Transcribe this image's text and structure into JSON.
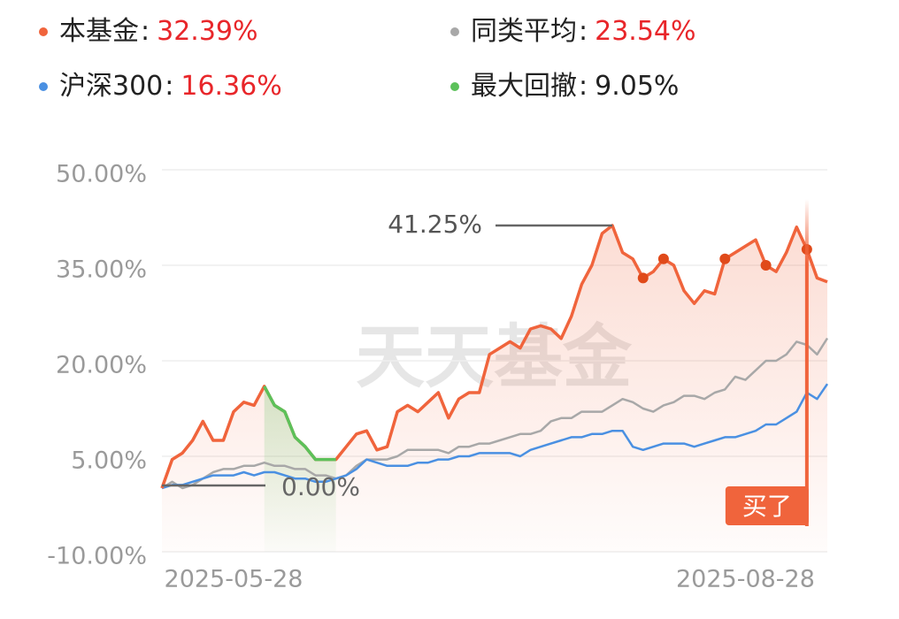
{
  "chart_data": {
    "type": "line",
    "watermark": "天天基金",
    "legend_separator": ":",
    "categories": [
      null,
      null,
      null,
      null,
      null,
      null,
      null,
      "2025-05-28",
      null,
      null,
      null,
      null,
      null,
      null,
      null,
      null,
      null,
      null,
      null,
      null,
      null,
      null,
      null,
      null,
      null,
      null,
      null,
      null,
      null,
      null,
      null,
      null,
      null,
      null,
      null,
      null,
      null,
      null,
      null,
      null,
      null,
      null,
      null,
      null,
      null,
      null,
      null,
      null,
      null,
      null,
      null,
      null,
      null,
      null,
      null,
      null,
      null,
      "2025-08-28",
      null,
      null,
      null,
      null,
      null,
      null,
      null,
      null
    ],
    "ylim": [
      -10,
      50
    ],
    "yticks": [
      {
        "value": 50,
        "label": "50.00%"
      },
      {
        "value": 35,
        "label": "35.00%"
      },
      {
        "value": 20,
        "label": "20.00%"
      },
      {
        "value": 5,
        "label": "5.00%"
      },
      {
        "value": -10,
        "label": "-10.00%"
      }
    ],
    "grid": true,
    "series": [
      {
        "name": "本基金",
        "color": "#f0643c",
        "legend_value": 32.39,
        "legend_label": "32.39%",
        "legend_value_color": "#e8262a",
        "area": true,
        "markers": [
          47,
          49,
          55,
          59,
          63
        ],
        "values": [
          0,
          4.5,
          5.5,
          7.5,
          10.5,
          7.5,
          7.5,
          12,
          13.5,
          13,
          16,
          13,
          12,
          8,
          6.5,
          4.5,
          4.5,
          4.5,
          6.5,
          8.5,
          9,
          6,
          6.5,
          12,
          13,
          12,
          13.5,
          15,
          11,
          14,
          15,
          15,
          21,
          22,
          23,
          22,
          25,
          25.5,
          25,
          23.5,
          27,
          32,
          35,
          40,
          41.25,
          37,
          36,
          33,
          34,
          36,
          35,
          31,
          29,
          31,
          30.5,
          36,
          37,
          38,
          39,
          35,
          34,
          37,
          41,
          37.5,
          33,
          32.39
        ]
      },
      {
        "name": "同类平均",
        "color": "#a8a8a8",
        "legend_value": 23.54,
        "legend_label": "23.54%",
        "legend_value_color": "#e8262a",
        "values": [
          0,
          1,
          0,
          0.5,
          1.5,
          2.5,
          3,
          3,
          3.5,
          3.5,
          4,
          3.5,
          3.5,
          3,
          3,
          2,
          2,
          1.5,
          2,
          3.5,
          4.5,
          4.5,
          4.5,
          5,
          6,
          6,
          6,
          6,
          5.5,
          6.5,
          6.5,
          7,
          7,
          7.5,
          8,
          8.5,
          8.5,
          9,
          10.5,
          11,
          11,
          12,
          12,
          12,
          13,
          14,
          13.5,
          12.5,
          12,
          13,
          13.5,
          14.5,
          14.5,
          14,
          15,
          15.5,
          17.5,
          17,
          18.5,
          20,
          20,
          21,
          23,
          22.5,
          21,
          23.54
        ]
      },
      {
        "name": "沪深300",
        "color": "#4a90e2",
        "legend_value": 16.36,
        "legend_label": "16.36%",
        "legend_value_color": "#e8262a",
        "values": [
          0,
          0.5,
          0.5,
          1,
          1.5,
          2,
          2,
          2,
          2.5,
          2,
          2.5,
          2.5,
          2,
          1.5,
          1.5,
          1,
          1,
          1.5,
          2,
          3,
          4.5,
          4,
          3.5,
          3.5,
          3.5,
          4,
          4,
          4.5,
          4.5,
          5,
          5,
          5.5,
          5.5,
          5.5,
          5.5,
          5,
          6,
          6.5,
          7,
          7.5,
          8,
          8,
          8.5,
          8.5,
          9,
          9,
          6.5,
          6,
          6.5,
          7,
          7,
          7,
          6.5,
          7,
          7.5,
          8,
          8,
          8.5,
          9,
          10,
          10,
          11,
          12,
          15,
          14,
          16.36
        ]
      },
      {
        "name": "最大回撤",
        "color": "#5cc15a",
        "legend_value": 9.05,
        "legend_label": "9.05%",
        "legend_value_color": "#222222",
        "values": [
          null,
          null,
          null,
          null,
          null,
          null,
          null,
          null,
          null,
          null,
          16,
          13,
          12,
          8,
          6.5,
          4.5,
          4.5,
          4.5,
          null,
          null,
          null,
          null,
          null,
          null,
          null,
          null,
          null,
          null,
          null,
          null,
          null,
          null,
          null,
          null,
          null,
          null,
          null,
          null,
          null,
          null,
          null,
          null,
          null,
          null,
          null,
          null,
          null,
          null,
          null,
          null,
          null,
          null,
          null,
          null,
          null,
          null,
          null,
          null,
          null,
          null,
          null,
          null,
          null,
          null,
          null,
          null
        ]
      }
    ],
    "annotations": [
      {
        "index": 44,
        "value": 41.25,
        "label": "41.25%",
        "side": "left"
      },
      {
        "index": 0,
        "value": 0,
        "label": "0.00%",
        "side": "right"
      },
      {
        "index": 63,
        "label": "买了",
        "type": "buy"
      }
    ]
  }
}
